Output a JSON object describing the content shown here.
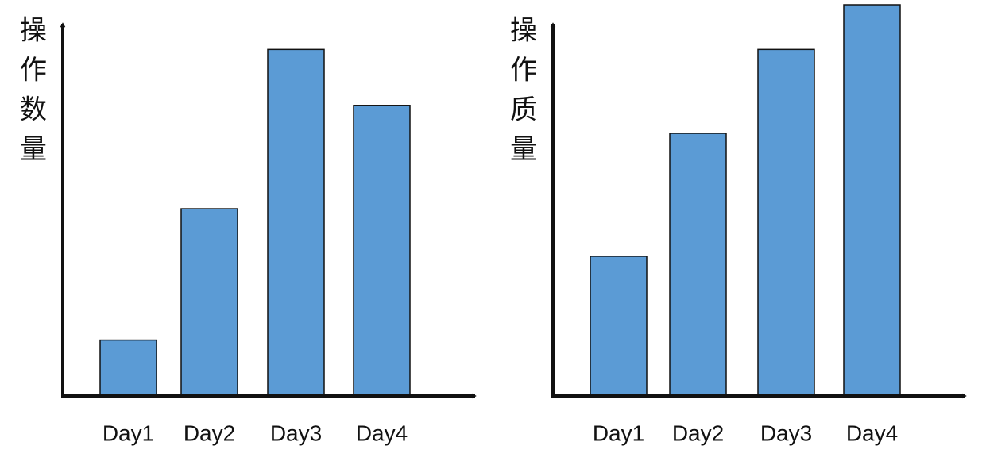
{
  "chart_data": [
    {
      "type": "bar",
      "title": "",
      "xlabel": "",
      "ylabel": "操作数量",
      "categories": [
        "Day1",
        "Day2",
        "Day3",
        "Day4"
      ],
      "values": [
        1,
        3.35,
        6.2,
        5.2
      ],
      "ylim": [
        0,
        7
      ],
      "grid": false,
      "bar_color": "#5b9bd5"
    },
    {
      "type": "bar",
      "title": "",
      "xlabel": "",
      "ylabel": "操作质量",
      "categories": [
        "Day1",
        "Day2",
        "Day3",
        "Day4"
      ],
      "values": [
        2.5,
        4.7,
        6.2,
        7
      ],
      "ylim": [
        0,
        7
      ],
      "grid": false,
      "bar_color": "#5b9bd5"
    }
  ]
}
